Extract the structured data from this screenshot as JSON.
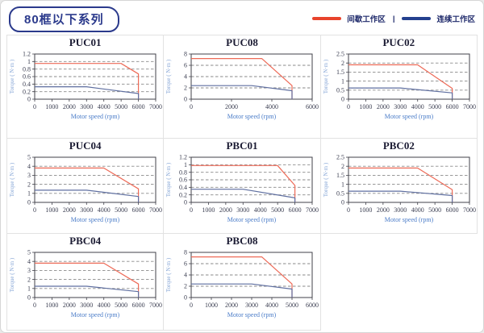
{
  "page": {
    "title": "80框以下系列",
    "legend_separator": "|",
    "legend": [
      {
        "label": "间歇工作区",
        "color": "#e8432c"
      },
      {
        "label": "连续工作区",
        "color": "#24408e"
      }
    ]
  },
  "colors": {
    "intermittent_line": "#ed6a57",
    "continuous_line": "#5f6fa0",
    "grid_line": "#8a8a8a",
    "frame": "#40404a",
    "title_text": "#1b1b33",
    "axis_label_blue": "#4a7cc8",
    "header_navy": "#2b3a8c"
  },
  "chart_data": [
    {
      "type": "line",
      "title": "PUC01",
      "xlabel": "Motor speed (rpm)",
      "ylabel": "Torque ( N·m )",
      "xlim": [
        0,
        7000
      ],
      "xticks": [
        0,
        1000,
        2000,
        3000,
        4000,
        5000,
        6000,
        7000
      ],
      "ylim": [
        0,
        1.2
      ],
      "yticks": [
        0,
        0.2,
        0.4,
        0.6,
        0.8,
        1,
        1.2
      ],
      "grid": "dashed-horizontal",
      "legend_position": "page-top-right",
      "series": [
        {
          "name": "间歇工作区",
          "color": "#ed6a57",
          "points": [
            [
              0,
              0.95
            ],
            [
              5000,
              0.95
            ],
            [
              6000,
              0.67
            ],
            [
              6000,
              0
            ]
          ]
        },
        {
          "name": "连续工作区",
          "color": "#5f6fa0",
          "points": [
            [
              0,
              0.33
            ],
            [
              3000,
              0.33
            ],
            [
              6000,
              0.15
            ],
            [
              6000,
              0
            ]
          ]
        }
      ]
    },
    {
      "type": "line",
      "title": "PUC08",
      "xlabel": "Motor speed (rpm)",
      "ylabel": "Torque ( N·m )",
      "xlim": [
        0,
        6000
      ],
      "xticks": [
        0,
        2000,
        4000,
        6000
      ],
      "ylim": [
        0,
        8
      ],
      "yticks": [
        0,
        2,
        4,
        6,
        8
      ],
      "grid": "dashed-horizontal",
      "legend_position": "page-top-right",
      "series": [
        {
          "name": "间歇工作区",
          "color": "#ed6a57",
          "points": [
            [
              0,
              7.2
            ],
            [
              3500,
              7.2
            ],
            [
              5000,
              2.4
            ],
            [
              5000,
              0
            ]
          ]
        },
        {
          "name": "连续工作区",
          "color": "#5f6fa0",
          "points": [
            [
              0,
              2.4
            ],
            [
              3000,
              2.4
            ],
            [
              5000,
              1.5
            ],
            [
              5000,
              0
            ]
          ]
        }
      ]
    },
    {
      "type": "line",
      "title": "PUC02",
      "xlabel": "Motor speed (rpm)",
      "ylabel": "Torque ( N·m )",
      "xlim": [
        0,
        7000
      ],
      "xticks": [
        0,
        1000,
        2000,
        3000,
        4000,
        5000,
        6000,
        7000
      ],
      "ylim": [
        0,
        2.5
      ],
      "yticks": [
        0,
        0.5,
        1,
        1.5,
        2,
        2.5
      ],
      "grid": "dashed-horizontal",
      "legend_position": "page-top-right",
      "series": [
        {
          "name": "间歇工作区",
          "color": "#ed6a57",
          "points": [
            [
              0,
              1.9
            ],
            [
              4000,
              1.9
            ],
            [
              6000,
              0.6
            ],
            [
              6000,
              0
            ]
          ]
        },
        {
          "name": "连续工作区",
          "color": "#5f6fa0",
          "points": [
            [
              0,
              0.62
            ],
            [
              3000,
              0.62
            ],
            [
              6000,
              0.35
            ],
            [
              6000,
              0
            ]
          ]
        }
      ]
    },
    {
      "type": "line",
      "title": "PUC04",
      "xlabel": "Motor speed (rpm)",
      "ylabel": "Torque ( N·m )",
      "xlim": [
        0,
        7000
      ],
      "xticks": [
        0,
        1000,
        2000,
        3000,
        4000,
        5000,
        6000,
        7000
      ],
      "ylim": [
        0,
        5
      ],
      "yticks": [
        0,
        1,
        2,
        3,
        4,
        5
      ],
      "grid": "dashed-horizontal",
      "legend_position": "page-top-right",
      "series": [
        {
          "name": "间歇工作区",
          "color": "#ed6a57",
          "points": [
            [
              0,
              3.8
            ],
            [
              4000,
              3.8
            ],
            [
              6000,
              1.5
            ],
            [
              6000,
              0
            ]
          ]
        },
        {
          "name": "连续工作区",
          "color": "#5f6fa0",
          "points": [
            [
              0,
              1.35
            ],
            [
              3000,
              1.35
            ],
            [
              6000,
              0.65
            ],
            [
              6000,
              0
            ]
          ]
        }
      ]
    },
    {
      "type": "line",
      "title": "PBC01",
      "xlabel": "Motor speed (rpm)",
      "ylabel": "Torque ( N·m )",
      "xlim": [
        0,
        7000
      ],
      "xticks": [
        0,
        1000,
        2000,
        3000,
        4000,
        5000,
        6000,
        7000
      ],
      "ylim": [
        0,
        1.2
      ],
      "yticks": [
        0,
        0.2,
        0.4,
        0.6,
        0.8,
        1,
        1.2
      ],
      "grid": "dashed-horizontal",
      "legend_position": "page-top-right",
      "series": [
        {
          "name": "间歇工作区",
          "color": "#ed6a57",
          "points": [
            [
              0,
              0.98
            ],
            [
              5000,
              0.98
            ],
            [
              6000,
              0.45
            ],
            [
              6000,
              0
            ]
          ]
        },
        {
          "name": "连续工作区",
          "color": "#5f6fa0",
          "points": [
            [
              0,
              0.35
            ],
            [
              3000,
              0.35
            ],
            [
              6000,
              0.12
            ],
            [
              6000,
              0
            ]
          ]
        }
      ]
    },
    {
      "type": "line",
      "title": "PBC02",
      "xlabel": "Motor speed (rpm)",
      "ylabel": "Torque ( N·m )",
      "xlim": [
        0,
        7000
      ],
      "xticks": [
        0,
        1000,
        2000,
        3000,
        4000,
        5000,
        6000,
        7000
      ],
      "ylim": [
        0,
        2.5
      ],
      "yticks": [
        0,
        0.5,
        1,
        1.5,
        2,
        2.5
      ],
      "grid": "dashed-horizontal",
      "legend_position": "page-top-right",
      "series": [
        {
          "name": "间歇工作区",
          "color": "#ed6a57",
          "points": [
            [
              0,
              1.9
            ],
            [
              4000,
              1.9
            ],
            [
              6000,
              0.7
            ],
            [
              6000,
              0
            ]
          ]
        },
        {
          "name": "连续工作区",
          "color": "#5f6fa0",
          "points": [
            [
              0,
              0.62
            ],
            [
              3000,
              0.62
            ],
            [
              6000,
              0.38
            ],
            [
              6000,
              0
            ]
          ]
        }
      ]
    },
    {
      "type": "line",
      "title": "PBC04",
      "xlabel": "Motor speed (rpm)",
      "ylabel": "Torque ( N·m )",
      "xlim": [
        0,
        7000
      ],
      "xticks": [
        0,
        1000,
        2000,
        3000,
        4000,
        5000,
        6000,
        7000
      ],
      "ylim": [
        0,
        5
      ],
      "yticks": [
        0,
        1,
        2,
        3,
        4,
        5
      ],
      "grid": "dashed-horizontal",
      "legend_position": "page-top-right",
      "series": [
        {
          "name": "间歇工作区",
          "color": "#ed6a57",
          "points": [
            [
              0,
              3.8
            ],
            [
              4000,
              3.8
            ],
            [
              6000,
              1.5
            ],
            [
              6000,
              0
            ]
          ]
        },
        {
          "name": "连续工作区",
          "color": "#5f6fa0",
          "points": [
            [
              0,
              1.25
            ],
            [
              3000,
              1.25
            ],
            [
              6000,
              0.65
            ],
            [
              6000,
              0
            ]
          ]
        }
      ]
    },
    {
      "type": "line",
      "title": "PBC08",
      "xlabel": "Motor speed (rpm)",
      "ylabel": "Torque ( N·m )",
      "xlim": [
        0,
        6000
      ],
      "xticks": [
        0,
        1000,
        2000,
        3000,
        4000,
        5000,
        6000
      ],
      "ylim": [
        0,
        8
      ],
      "yticks": [
        0,
        2,
        4,
        6,
        8
      ],
      "grid": "dashed-horizontal",
      "legend_position": "page-top-right",
      "series": [
        {
          "name": "间歇工作区",
          "color": "#ed6a57",
          "points": [
            [
              0,
              7.2
            ],
            [
              3500,
              7.2
            ],
            [
              5000,
              2.4
            ],
            [
              5000,
              0
            ]
          ]
        },
        {
          "name": "连续工作区",
          "color": "#5f6fa0",
          "points": [
            [
              0,
              2.4
            ],
            [
              3000,
              2.4
            ],
            [
              5000,
              1.5
            ],
            [
              5000,
              0
            ]
          ]
        }
      ]
    }
  ]
}
